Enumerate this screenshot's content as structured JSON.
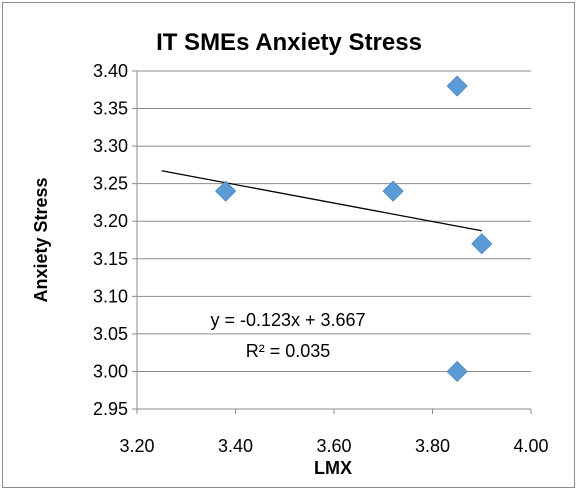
{
  "chart_data": {
    "type": "scatter",
    "title": "IT SMEs Anxiety Stress",
    "xlabel": "LMX",
    "ylabel": "Anxiety  Stress",
    "xlim": [
      3.2,
      4.0
    ],
    "ylim": [
      2.95,
      3.4
    ],
    "x_ticks": [
      "3.20",
      "3.40",
      "3.60",
      "3.80",
      "4.00"
    ],
    "y_ticks": [
      "2.95",
      "3.00",
      "3.05",
      "3.10",
      "3.15",
      "3.20",
      "3.25",
      "3.30",
      "3.35",
      "3.40"
    ],
    "grid": "horizontal",
    "series": [
      {
        "color": "#5b9bd5",
        "marker": "diamond",
        "points": [
          {
            "x": 3.38,
            "y": 3.24
          },
          {
            "x": 3.72,
            "y": 3.24
          },
          {
            "x": 3.85,
            "y": 3.38
          },
          {
            "x": 3.9,
            "y": 3.17
          },
          {
            "x": 3.85,
            "y": 3.0
          }
        ]
      }
    ],
    "trendline": {
      "type": "linear",
      "slope": -0.123,
      "intercept": 3.667,
      "x_range": [
        3.25,
        3.9
      ],
      "color": "#000000",
      "equation_label": "y = -0.123x + 3.667",
      "r2_label": "R² = 0.035"
    }
  }
}
